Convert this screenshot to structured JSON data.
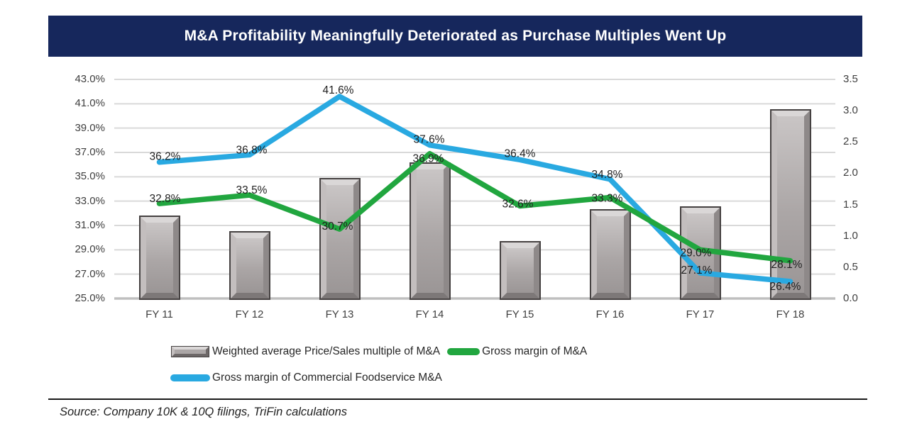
{
  "title": {
    "text": "M&A Profitability Meaningfully Deteriorated as Purchase Multiples Went Up"
  },
  "source": {
    "text": "Source: Company 10K & 10Q filings, TriFin calculations"
  },
  "colors": {
    "title_bg": "#16275c",
    "title_text": "#ffffff",
    "gridline": "#d9d9d9",
    "axis_baseline": "#bfbfbf",
    "bar_face": "#aba6a6",
    "bar_frame": "#454141",
    "green_line": "#21a63f",
    "blue_line": "#29a9e1",
    "data_label_text": "#1f1f1f"
  },
  "legend": {
    "items": [
      {
        "swatch": "bar",
        "label": "Weighted average Price/Sales multiple of M&A"
      },
      {
        "swatch": "line-green",
        "label": "Gross margin of M&A"
      },
      {
        "swatch": "line-blue",
        "label": "Gross margin of Commercial Foodservice M&A"
      }
    ]
  },
  "chart_data": {
    "type": "combo-bar-line",
    "title": "M&A Profitability Meaningfully Deteriorated as Purchase Multiples Went Up",
    "categories": [
      "FY 11",
      "FY 12",
      "FY 13",
      "FY 14",
      "FY 15",
      "FY 16",
      "FY 17",
      "FY 18"
    ],
    "series": [
      {
        "name": "Weighted average Price/Sales multiple of M&A",
        "type": "bar",
        "axis": "right",
        "values": [
          1.3,
          1.05,
          1.9,
          2.15,
          0.9,
          1.4,
          1.45,
          3.0
        ]
      },
      {
        "name": "Gross margin of M&A",
        "type": "line",
        "axis": "left",
        "color": "#21a63f",
        "values": [
          32.8,
          33.5,
          30.7,
          36.9,
          32.6,
          33.3,
          29.0,
          28.1
        ],
        "labels": [
          "32.8%",
          "33.5%",
          "30.7%",
          "36.9%",
          "32.6%",
          "33.3%",
          "29.0%",
          "28.1%"
        ]
      },
      {
        "name": "Gross margin of Commercial Foodservice M&A",
        "type": "line",
        "axis": "left",
        "color": "#29a9e1",
        "values": [
          36.2,
          36.8,
          41.6,
          37.6,
          36.4,
          34.8,
          27.1,
          26.4
        ],
        "labels": [
          "36.2%",
          "36.8%",
          "41.6%",
          "37.6%",
          "36.4%",
          "34.8%",
          "27.1%",
          "26.4%"
        ]
      }
    ],
    "left_axis": {
      "min": 25,
      "max": 43,
      "step": 2,
      "format": "percent",
      "tick_labels": [
        "43.0%",
        "41.0%",
        "39.0%",
        "37.0%",
        "35.0%",
        "33.0%",
        "31.0%",
        "29.0%",
        "27.0%",
        "25.0%"
      ]
    },
    "right_axis": {
      "min": 0,
      "max": 3.5,
      "step": 0.5,
      "tick_labels": [
        "3.5",
        "3.0",
        "2.5",
        "2.0",
        "1.5",
        "1.0",
        "0.5",
        "0.0"
      ]
    },
    "grid": true,
    "legend_position": "bottom"
  }
}
